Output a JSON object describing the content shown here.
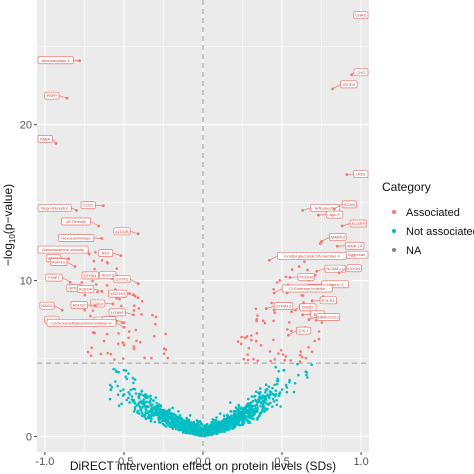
{
  "chart_data": {
    "type": "scatter",
    "xlabel": "DiRECT intervention effect on protein levels (SDs)",
    "ylabel": "-log10(p-value)",
    "xlim": [
      -1.05,
      1.05
    ],
    "ylim": [
      -1,
      28
    ],
    "xticks": [
      -1.0,
      -0.5,
      0.0,
      0.5,
      1.0
    ],
    "xtick_labels": [
      "-1.0",
      "-0.5",
      "0.0",
      "0.5",
      "1.0"
    ],
    "yticks": [
      0,
      10,
      20
    ],
    "ytick_labels": [
      "0",
      "10",
      "20"
    ],
    "threshold_y": 4.7,
    "vline_x": 0,
    "grid": true,
    "legend": {
      "title": "Category",
      "position": "right",
      "entries": [
        {
          "label": "Associated",
          "color": "#f8766d"
        },
        {
          "label": "Not associated",
          "color": "#00bfc4"
        },
        {
          "label": "NA",
          "color": "#7f7f7f"
        }
      ]
    },
    "colors": {
      "associated": "#f8766d",
      "not_associated": "#00bfc4",
      "threshold_line": "#9e9e9e",
      "panel_background": "#ebebeb",
      "grid": "#ffffff"
    },
    "annotations": [
      {
        "label": "Aminoacylase-1",
        "x": -0.78,
        "y": 24.1
      },
      {
        "label": "PAPP",
        "x": -0.86,
        "y": 21.7
      },
      {
        "label": "FABA",
        "x": -0.93,
        "y": 18.8
      },
      {
        "label": "CD22",
        "x": -0.63,
        "y": 14.8
      },
      {
        "label": "Nogo Receptor",
        "x": -0.8,
        "y": 14.5
      },
      {
        "label": "cE-Selectin",
        "x": -0.66,
        "y": 13.5
      },
      {
        "label": "Hexosaminidase",
        "x": -0.64,
        "y": 12.7
      },
      {
        "label": "ALDOB",
        "x": -0.41,
        "y": 13.0
      },
      {
        "label": "Galactosamine-oxidase",
        "x": -0.72,
        "y": 11.7
      },
      {
        "label": "ADH4",
        "x": -0.85,
        "y": 11.4
      },
      {
        "label": "RET",
        "x": -0.52,
        "y": 11.6
      },
      {
        "label": "ADH1G",
        "x": -0.81,
        "y": 10.9
      },
      {
        "label": "HTRA1",
        "x": -0.61,
        "y": 10.3
      },
      {
        "label": "SULF2",
        "x": -0.5,
        "y": 10.2
      },
      {
        "label": "FHIP1",
        "x": -0.84,
        "y": 9.9
      },
      {
        "label": "GPDA",
        "x": -0.72,
        "y": 9.5
      },
      {
        "label": "ALDOA",
        "x": -0.64,
        "y": 9.3
      },
      {
        "label": "CSTP1",
        "x": -0.41,
        "y": 9.8
      },
      {
        "label": "C3Ad",
        "x": -0.57,
        "y": 8.5
      },
      {
        "label": "sCD163",
        "x": -0.43,
        "y": 9.0
      },
      {
        "label": "NAGU",
        "x": -0.89,
        "y": 8.1
      },
      {
        "label": "ADH1C",
        "x": -0.68,
        "y": 8.4
      },
      {
        "label": "LG3BP",
        "x": -0.44,
        "y": 7.8
      },
      {
        "label": "ADHX",
        "x": -0.86,
        "y": 7.2
      },
      {
        "label": "GPI",
        "x": -0.55,
        "y": 7.4
      },
      {
        "label": "PGM",
        "x": -0.5,
        "y": 7.3
      },
      {
        "label": "Carboxymethylenebutenolidase H",
        "x": -0.5,
        "y": 7.0
      },
      {
        "label": "CHAD",
        "x": 0.97,
        "y": 27.0
      },
      {
        "label": "CHO",
        "x": 0.94,
        "y": 23.2
      },
      {
        "label": "ISOD4",
        "x": 0.82,
        "y": 22.3
      },
      {
        "label": "LRD1",
        "x": 0.91,
        "y": 16.8
      },
      {
        "label": "Adiponectin",
        "x": 0.63,
        "y": 14.5
      },
      {
        "label": "SCAN",
        "x": 0.83,
        "y": 14.6
      },
      {
        "label": "Apo F",
        "x": 0.73,
        "y": 14.2
      },
      {
        "label": "SCARF",
        "x": 0.88,
        "y": 13.5
      },
      {
        "label": "MARK3",
        "x": 0.75,
        "y": 12.5
      },
      {
        "label": "MMP-14",
        "x": 0.85,
        "y": 12.2
      },
      {
        "label": "Aggrecan",
        "x": 0.86,
        "y": 11.5
      },
      {
        "label": "Inositol glucoside 3A member 4",
        "x": 0.42,
        "y": 11.3
      },
      {
        "label": "PCDH4",
        "x": 0.55,
        "y": 10.2
      },
      {
        "label": "NCAM-L1",
        "x": 0.72,
        "y": 10.6
      },
      {
        "label": "CDON",
        "x": 0.86,
        "y": 10.5
      },
      {
        "label": "SCG3",
        "x": 0.61,
        "y": 9.5
      },
      {
        "label": "Limitrin-1",
        "x": 0.7,
        "y": 9.6
      },
      {
        "label": "CI-Esterase Inhibitor",
        "x": 0.45,
        "y": 9.2
      },
      {
        "label": "FOLR1",
        "x": 0.69,
        "y": 8.7
      },
      {
        "label": "STRA12",
        "x": 0.4,
        "y": 8.2
      },
      {
        "label": "ZN562",
        "x": 0.56,
        "y": 8.0
      },
      {
        "label": "BSP",
        "x": 0.63,
        "y": 7.8
      },
      {
        "label": "MARCKSL1",
        "x": 0.67,
        "y": 7.5
      },
      {
        "label": "CHL1",
        "x": 0.54,
        "y": 6.5
      }
    ]
  }
}
